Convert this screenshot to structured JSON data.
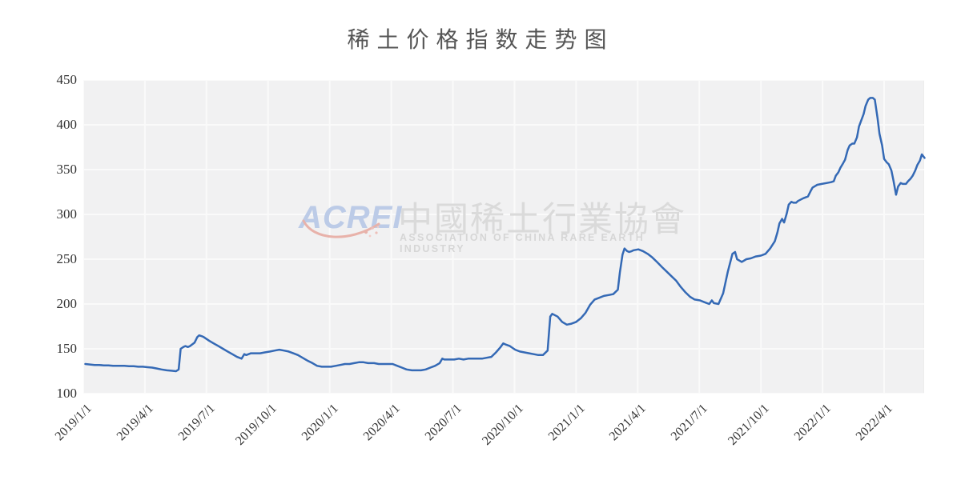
{
  "title": "稀土价格指数走势图",
  "watermark": {
    "logo_text": "ACREI",
    "cn_text": "中國稀土行業協會",
    "en_text": "ASSOCIATION OF CHINA RARE EARTH INDUSTRY",
    "logo_color": "#bccbe7",
    "swoosh_color": "#e8b2aa",
    "text_color": "#dadada"
  },
  "chart_data": {
    "type": "line",
    "title": "稀土价格指数走势图",
    "xlabel": "",
    "ylabel": "",
    "ylim": [
      100,
      450
    ],
    "y_ticks": [
      100,
      150,
      200,
      250,
      300,
      350,
      400,
      450
    ],
    "x_ticks": [
      "2019/1/1",
      "2019/4/1",
      "2019/7/1",
      "2019/10/1",
      "2020/1/1",
      "2020/4/1",
      "2020/7/1",
      "2020/10/1",
      "2021/1/1",
      "2021/4/1",
      "2021/7/1",
      "2021/10/1",
      "2022/1/1",
      "2022/4/1"
    ],
    "x_range": [
      "2019/1/1",
      "2022/6/1"
    ],
    "grid": true,
    "legend": "none",
    "plot_bg": "#f1f1f2",
    "grid_color": "#fafafa",
    "axis_label_color": "#333333",
    "series": [
      {
        "name": "稀土价格指数",
        "color": "#3469b5",
        "points": [
          [
            "2019/1/4",
            133
          ],
          [
            "2019/1/11",
            132.5
          ],
          [
            "2019/1/18",
            132
          ],
          [
            "2019/1/25",
            132
          ],
          [
            "2019/2/1",
            131.5
          ],
          [
            "2019/2/8",
            131.5
          ],
          [
            "2019/2/15",
            131
          ],
          [
            "2019/2/22",
            131
          ],
          [
            "2019/3/1",
            131
          ],
          [
            "2019/3/8",
            130.5
          ],
          [
            "2019/3/15",
            130.5
          ],
          [
            "2019/3/22",
            130
          ],
          [
            "2019/3/29",
            130
          ],
          [
            "2019/4/5",
            129.5
          ],
          [
            "2019/4/12",
            129
          ],
          [
            "2019/4/19",
            128
          ],
          [
            "2019/4/26",
            127
          ],
          [
            "2019/5/3",
            126
          ],
          [
            "2019/5/10",
            125.5
          ],
          [
            "2019/5/17",
            125
          ],
          [
            "2019/5/21",
            127
          ],
          [
            "2019/5/24",
            150
          ],
          [
            "2019/5/28",
            152
          ],
          [
            "2019/5/31",
            153
          ],
          [
            "2019/6/4",
            152
          ],
          [
            "2019/6/7",
            153
          ],
          [
            "2019/6/14",
            157
          ],
          [
            "2019/6/18",
            163
          ],
          [
            "2019/6/21",
            165
          ],
          [
            "2019/6/25",
            164
          ],
          [
            "2019/6/28",
            163
          ],
          [
            "2019/7/5",
            159
          ],
          [
            "2019/7/12",
            156
          ],
          [
            "2019/7/19",
            153
          ],
          [
            "2019/7/26",
            150
          ],
          [
            "2019/8/2",
            147
          ],
          [
            "2019/8/9",
            144
          ],
          [
            "2019/8/16",
            141
          ],
          [
            "2019/8/23",
            139
          ],
          [
            "2019/8/27",
            144
          ],
          [
            "2019/8/30",
            143
          ],
          [
            "2019/9/6",
            145
          ],
          [
            "2019/9/13",
            145
          ],
          [
            "2019/9/20",
            145
          ],
          [
            "2019/9/27",
            146
          ],
          [
            "2019/10/4",
            147
          ],
          [
            "2019/10/11",
            148
          ],
          [
            "2019/10/18",
            149
          ],
          [
            "2019/10/25",
            148
          ],
          [
            "2019/11/1",
            147
          ],
          [
            "2019/11/8",
            145
          ],
          [
            "2019/11/15",
            143
          ],
          [
            "2019/11/22",
            140
          ],
          [
            "2019/11/29",
            137
          ],
          [
            "2019/12/6",
            134
          ],
          [
            "2019/12/13",
            131
          ],
          [
            "2019/12/20",
            130
          ],
          [
            "2019/12/27",
            130
          ],
          [
            "2020/1/3",
            130
          ],
          [
            "2020/1/10",
            131
          ],
          [
            "2020/1/17",
            132
          ],
          [
            "2020/1/24",
            133
          ],
          [
            "2020/1/31",
            133
          ],
          [
            "2020/2/7",
            134
          ],
          [
            "2020/2/14",
            135
          ],
          [
            "2020/2/21",
            135
          ],
          [
            "2020/2/28",
            134
          ],
          [
            "2020/3/6",
            134
          ],
          [
            "2020/3/13",
            133
          ],
          [
            "2020/3/20",
            133
          ],
          [
            "2020/3/27",
            133
          ],
          [
            "2020/4/3",
            133
          ],
          [
            "2020/4/10",
            131
          ],
          [
            "2020/4/17",
            129
          ],
          [
            "2020/4/24",
            127
          ],
          [
            "2020/5/1",
            126
          ],
          [
            "2020/5/8",
            126
          ],
          [
            "2020/5/15",
            126
          ],
          [
            "2020/5/22",
            127
          ],
          [
            "2020/5/29",
            129
          ],
          [
            "2020/6/5",
            131
          ],
          [
            "2020/6/12",
            134
          ],
          [
            "2020/6/16",
            139
          ],
          [
            "2020/6/19",
            138
          ],
          [
            "2020/6/26",
            138
          ],
          [
            "2020/7/3",
            138
          ],
          [
            "2020/7/10",
            139
          ],
          [
            "2020/7/17",
            138
          ],
          [
            "2020/7/24",
            139
          ],
          [
            "2020/7/31",
            139
          ],
          [
            "2020/8/7",
            139
          ],
          [
            "2020/8/14",
            139
          ],
          [
            "2020/8/21",
            140
          ],
          [
            "2020/8/28",
            141
          ],
          [
            "2020/9/4",
            146
          ],
          [
            "2020/9/11",
            152
          ],
          [
            "2020/9/15",
            156
          ],
          [
            "2020/9/18",
            155
          ],
          [
            "2020/9/25",
            153
          ],
          [
            "2020/10/2",
            149
          ],
          [
            "2020/10/9",
            147
          ],
          [
            "2020/10/16",
            146
          ],
          [
            "2020/10/23",
            145
          ],
          [
            "2020/10/30",
            144
          ],
          [
            "2020/11/6",
            143
          ],
          [
            "2020/11/13",
            143
          ],
          [
            "2020/11/20",
            148
          ],
          [
            "2020/11/24",
            186
          ],
          [
            "2020/11/27",
            189
          ],
          [
            "2020/12/4",
            186
          ],
          [
            "2020/12/11",
            180
          ],
          [
            "2020/12/18",
            177
          ],
          [
            "2020/12/25",
            178
          ],
          [
            "2021/1/1",
            180
          ],
          [
            "2021/1/8",
            184
          ],
          [
            "2021/1/15",
            190
          ],
          [
            "2021/1/22",
            199
          ],
          [
            "2021/1/29",
            205
          ],
          [
            "2021/2/5",
            207
          ],
          [
            "2021/2/12",
            209
          ],
          [
            "2021/2/19",
            210
          ],
          [
            "2021/2/26",
            211
          ],
          [
            "2021/3/2",
            216
          ],
          [
            "2021/3/5",
            235
          ],
          [
            "2021/3/9",
            255
          ],
          [
            "2021/3/12",
            262
          ],
          [
            "2021/3/16",
            259
          ],
          [
            "2021/3/19",
            258
          ],
          [
            "2021/3/23",
            259
          ],
          [
            "2021/3/26",
            260
          ],
          [
            "2021/4/2",
            261
          ],
          [
            "2021/4/9",
            259
          ],
          [
            "2021/4/16",
            256
          ],
          [
            "2021/4/23",
            252
          ],
          [
            "2021/4/30",
            247
          ],
          [
            "2021/5/7",
            241
          ],
          [
            "2021/5/14",
            236
          ],
          [
            "2021/5/21",
            231
          ],
          [
            "2021/5/28",
            226
          ],
          [
            "2021/6/4",
            219
          ],
          [
            "2021/6/11",
            213
          ],
          [
            "2021/6/18",
            208
          ],
          [
            "2021/6/25",
            205
          ],
          [
            "2021/7/2",
            204
          ],
          [
            "2021/7/9",
            202
          ],
          [
            "2021/7/16",
            200
          ],
          [
            "2021/7/20",
            204
          ],
          [
            "2021/7/23",
            201
          ],
          [
            "2021/7/30",
            200
          ],
          [
            "2021/8/6",
            212
          ],
          [
            "2021/8/13",
            236
          ],
          [
            "2021/8/20",
            256
          ],
          [
            "2021/8/24",
            258
          ],
          [
            "2021/8/27",
            250
          ],
          [
            "2021/9/3",
            247
          ],
          [
            "2021/9/10",
            250
          ],
          [
            "2021/9/17",
            251
          ],
          [
            "2021/9/24",
            253
          ],
          [
            "2021/10/1",
            254
          ],
          [
            "2021/10/8",
            256
          ],
          [
            "2021/10/15",
            262
          ],
          [
            "2021/10/22",
            270
          ],
          [
            "2021/10/26",
            280
          ],
          [
            "2021/10/29",
            290
          ],
          [
            "2021/11/2",
            295
          ],
          [
            "2021/11/5",
            291
          ],
          [
            "2021/11/9",
            301
          ],
          [
            "2021/11/12",
            311
          ],
          [
            "2021/11/16",
            314
          ],
          [
            "2021/11/19",
            313
          ],
          [
            "2021/11/23",
            313
          ],
          [
            "2021/11/26",
            315
          ],
          [
            "2021/12/3",
            318
          ],
          [
            "2021/12/10",
            320
          ],
          [
            "2021/12/14",
            326
          ],
          [
            "2021/12/17",
            330
          ],
          [
            "2021/12/24",
            333
          ],
          [
            "2021/12/31",
            334
          ],
          [
            "2022/1/7",
            335
          ],
          [
            "2022/1/14",
            336
          ],
          [
            "2022/1/18",
            337
          ],
          [
            "2022/1/21",
            343
          ],
          [
            "2022/1/25",
            347
          ],
          [
            "2022/1/28",
            352
          ],
          [
            "2022/2/1",
            357
          ],
          [
            "2022/2/4",
            361
          ],
          [
            "2022/2/8",
            372
          ],
          [
            "2022/2/11",
            377
          ],
          [
            "2022/2/15",
            379
          ],
          [
            "2022/2/18",
            379
          ],
          [
            "2022/2/22",
            386
          ],
          [
            "2022/2/25",
            398
          ],
          [
            "2022/3/1",
            412
          ],
          [
            "2022/3/4",
            421
          ],
          [
            "2022/3/8",
            428
          ],
          [
            "2022/3/11",
            430
          ],
          [
            "2022/3/15",
            430
          ],
          [
            "2022/3/18",
            428
          ],
          [
            "2022/3/22",
            408
          ],
          [
            "2022/3/25",
            390
          ],
          [
            "2022/3/29",
            377
          ],
          [
            "2022/4/1",
            362
          ],
          [
            "2022/4/5",
            358
          ],
          [
            "2022/4/8",
            356
          ],
          [
            "2022/4/12",
            349
          ],
          [
            "2022/4/15",
            338
          ],
          [
            "2022/4/19",
            322
          ],
          [
            "2022/4/22",
            331
          ],
          [
            "2022/4/26",
            335
          ],
          [
            "2022/4/29",
            334
          ],
          [
            "2022/5/3",
            334
          ],
          [
            "2022/5/6",
            337
          ],
          [
            "2022/5/10",
            340
          ],
          [
            "2022/5/13",
            343
          ],
          [
            "2022/5/17",
            349
          ],
          [
            "2022/5/20",
            355
          ],
          [
            "2022/5/24",
            360
          ],
          [
            "2022/5/27",
            367
          ],
          [
            "2022/5/31",
            363
          ]
        ]
      }
    ]
  }
}
